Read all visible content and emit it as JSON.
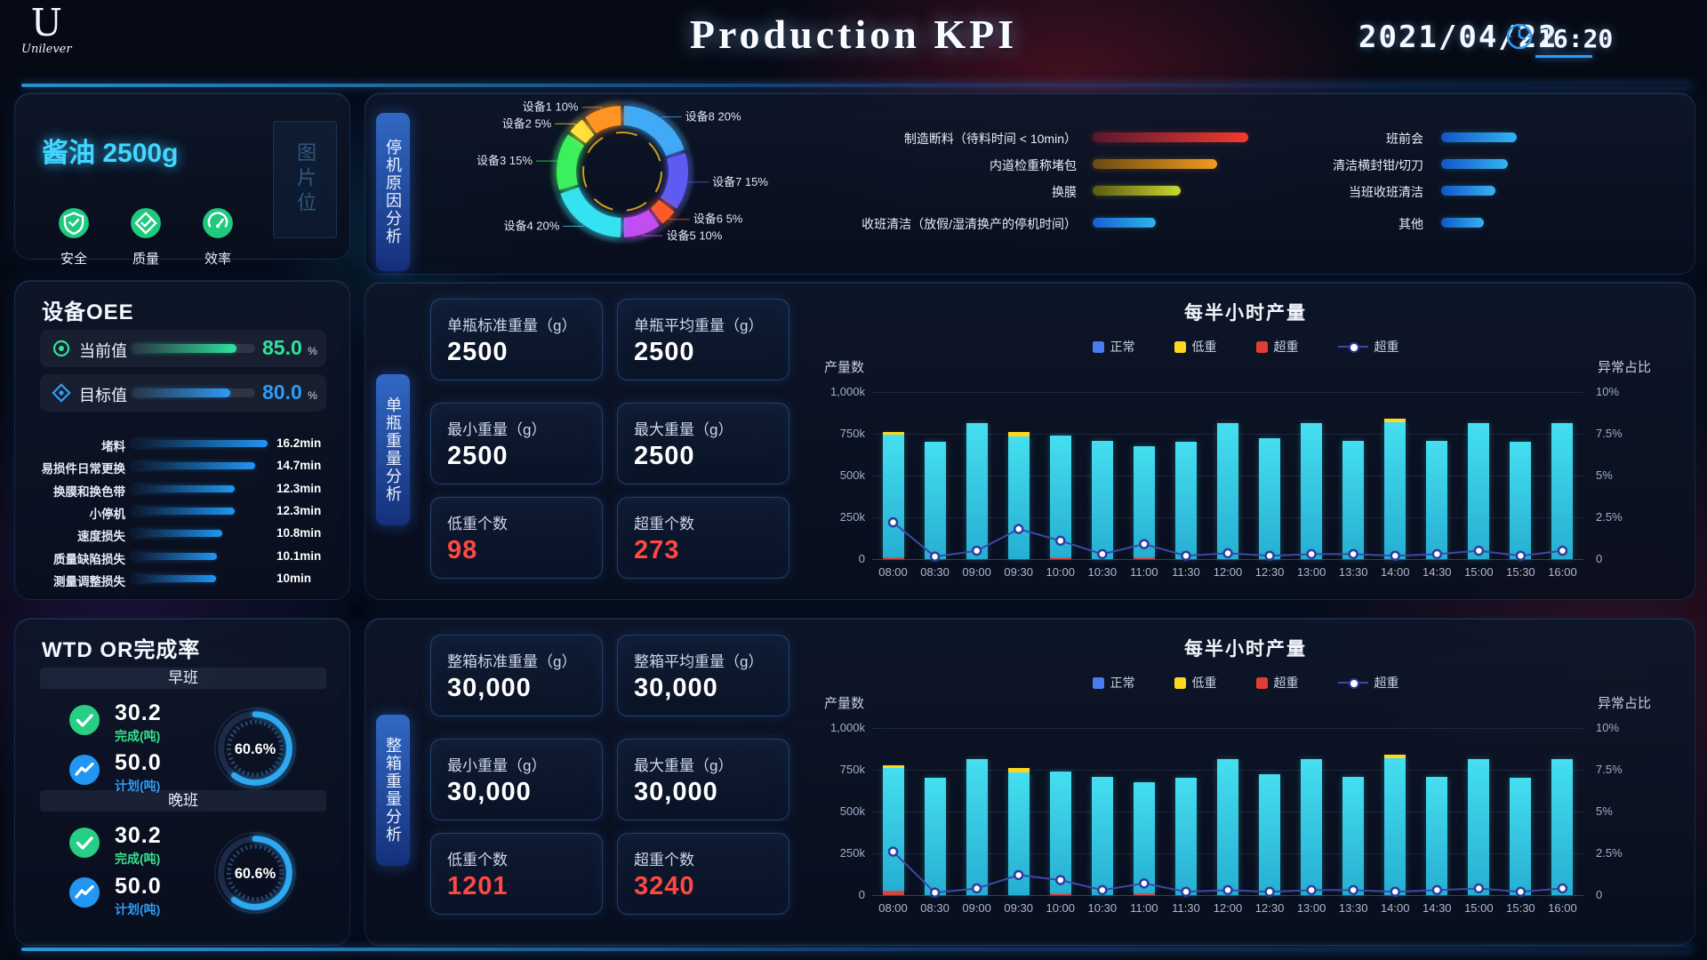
{
  "header": {
    "brand_letter": "U",
    "brand_script": "Unilever",
    "title": "Production KPI",
    "date": "2021/04/22",
    "time": "16:20"
  },
  "product": {
    "title": "酱油 2500g",
    "image_placeholder": "图片位",
    "badges": [
      {
        "icon": "shield-check-icon",
        "label": "安全"
      },
      {
        "icon": "diamond-check-icon",
        "label": "质量"
      },
      {
        "icon": "gauge-icon",
        "label": "效率"
      }
    ]
  },
  "oee": {
    "title": "设备OEE",
    "rows": [
      {
        "icon": "target-rings-icon",
        "label": "当前值",
        "value": "85.0",
        "unit": "%",
        "percent": 85,
        "color": "#2fe39b"
      },
      {
        "icon": "target-diamond-icon",
        "label": "目标值",
        "value": "80.0",
        "unit": "%",
        "percent": 80,
        "color": "#2e9bf5"
      }
    ],
    "losses": [
      {
        "label": "堵料",
        "value": "16.2min",
        "minutes": 16.2
      },
      {
        "label": "易损件日常更换",
        "value": "14.7min",
        "minutes": 14.7
      },
      {
        "label": "换膜和换色带",
        "value": "12.3min",
        "minutes": 12.3
      },
      {
        "label": "小停机",
        "value": "12.3min",
        "minutes": 12.3
      },
      {
        "label": "速度损失",
        "value": "10.8min",
        "minutes": 10.8
      },
      {
        "label": "质量缺陷损失",
        "value": "10.1min",
        "minutes": 10.1
      },
      {
        "label": "测量调整损失",
        "value": "10min",
        "minutes": 10
      }
    ]
  },
  "wtd": {
    "title": "WTD OR完成率",
    "shifts": [
      {
        "name": "早班",
        "done": "30.2",
        "done_label": "完成(吨)",
        "plan": "50.0",
        "plan_label": "计划(吨)",
        "gauge_text": "60.6%",
        "gauge_percent": 60.6
      },
      {
        "name": "晚班",
        "done": "30.2",
        "done_label": "完成(吨)",
        "plan": "50.0",
        "plan_label": "计划(吨)",
        "gauge_text": "60.6%",
        "gauge_percent": 60.6
      }
    ]
  },
  "downtime": {
    "tab": "停机原因分析"
  },
  "bottle": {
    "tab": "单瓶重量分析",
    "cards": [
      {
        "label": "单瓶标准重量（g）",
        "value": "2500"
      },
      {
        "label": "单瓶平均重量（g）",
        "value": "2500"
      },
      {
        "label": "最小重量（g）",
        "value": "2500"
      },
      {
        "label": "最大重量（g）",
        "value": "2500"
      },
      {
        "label": "低重个数",
        "value": "98",
        "alert": true
      },
      {
        "label": "超重个数",
        "value": "273",
        "alert": true
      }
    ]
  },
  "casebox": {
    "tab": "整箱重量分析",
    "cards": [
      {
        "label": "整箱标准重量（g）",
        "value": "30,000"
      },
      {
        "label": "整箱平均重量（g）",
        "value": "30,000"
      },
      {
        "label": "最小重量（g）",
        "value": "30,000"
      },
      {
        "label": "最大重量（g）",
        "value": "30,000"
      },
      {
        "label": "低重个数",
        "value": "1201",
        "alert": true
      },
      {
        "label": "超重个数",
        "value": "3240",
        "alert": true
      }
    ]
  },
  "chart_data": [
    {
      "id": "downtime-donut",
      "type": "pie",
      "donut": true,
      "label_format": "{name} {value}%",
      "segments": [
        {
          "name": "设备8",
          "value": 20,
          "color": "#41aaf7"
        },
        {
          "name": "设备7",
          "value": 15,
          "color": "#5d5bf2"
        },
        {
          "name": "设备6",
          "value": 5,
          "color": "#ff5a28"
        },
        {
          "name": "设备5",
          "value": 10,
          "color": "#c24df2"
        },
        {
          "name": "设备4",
          "value": 20,
          "color": "#35e2f2"
        },
        {
          "name": "设备3",
          "value": 15,
          "color": "#3bf05c"
        },
        {
          "name": "设备2",
          "value": 5,
          "color": "#ffe23a"
        },
        {
          "name": "设备1",
          "value": 10,
          "color": "#ff9324"
        }
      ]
    },
    {
      "id": "downtime-duration-bars",
      "type": "bar",
      "orientation": "horizontal",
      "note": "no numeric axis shown; lengths are relative pixel widths",
      "groups": [
        [
          {
            "label": "制造断料（待料时间 < 10min）",
            "length": 175,
            "color_from": "#5a1630",
            "color_to": "#f23c2e"
          },
          {
            "label": "内道检重称堵包",
            "length": 140,
            "color_from": "#6a4a15",
            "color_to": "#f09a1f"
          },
          {
            "label": "换膜",
            "length": 99,
            "color_from": "#5a5a12",
            "color_to": "#c8d832"
          },
          {
            "label": "收班清洁（放假/湿清换产的停机时间）",
            "length": 71,
            "color_from": "#1560d0",
            "color_to": "#2fb4ec"
          }
        ],
        [
          {
            "label": "班前会",
            "length": 85,
            "color_from": "#1255c8",
            "color_to": "#35b4f0"
          },
          {
            "label": "清洁横封钳/切刀",
            "length": 75,
            "color_from": "#1255c8",
            "color_to": "#35b4f0"
          },
          {
            "label": "当班收班清洁",
            "length": 61,
            "color_from": "#1255c8",
            "color_to": "#35b4f0"
          },
          {
            "label": "其他",
            "length": 48,
            "color_from": "#1255c8",
            "color_to": "#35b4f0"
          }
        ]
      ]
    },
    {
      "id": "bottle-halfhour",
      "type": "bar",
      "title": "每半小时产量",
      "ylabel": "产量数",
      "y2label": "异常占比",
      "ymax": 1000,
      "y2max": 10,
      "yticks": [
        "1,000k",
        "750k",
        "500k",
        "250k",
        "0"
      ],
      "y2ticks": [
        "10%",
        "7.5%",
        "5%",
        "2.5%",
        "0"
      ],
      "categories": [
        "08:00",
        "08:30",
        "09:00",
        "09:30",
        "10:00",
        "10:30",
        "11:00",
        "11:30",
        "12:00",
        "12:30",
        "13:00",
        "13:30",
        "14:00",
        "14:30",
        "15:00",
        "15:30",
        "16:00"
      ],
      "unit": "k",
      "series": [
        {
          "name": "正常",
          "color": "#4a7df5",
          "bar_color_top": "#45dff0",
          "bar_color_bottom": "#26aed2",
          "values": [
            735,
            700,
            812,
            735,
            728,
            705,
            665,
            700,
            812,
            725,
            812,
            705,
            820,
            710,
            812,
            700,
            812
          ]
        },
        {
          "name": "低重",
          "color": "#ffd81e",
          "values": [
            15,
            0,
            0,
            25,
            0,
            0,
            0,
            0,
            0,
            0,
            0,
            0,
            18,
            0,
            0,
            0,
            0
          ]
        },
        {
          "name": "超重",
          "color": "#e03c38",
          "values": [
            12,
            0,
            0,
            0,
            10,
            0,
            8,
            0,
            0,
            0,
            0,
            0,
            0,
            0,
            0,
            0,
            0
          ]
        }
      ],
      "line": {
        "name": "超重",
        "color": "#3c49a8",
        "marker": "circle",
        "axis": "right",
        "values": [
          2.2,
          0.15,
          0.5,
          1.8,
          1.1,
          0.3,
          0.9,
          0.2,
          0.35,
          0.2,
          0.3,
          0.3,
          0.2,
          0.3,
          0.5,
          0.2,
          0.5
        ]
      }
    },
    {
      "id": "case-halfhour",
      "type": "bar",
      "title": "每半小时产量",
      "ylabel": "产量数",
      "y2label": "异常占比",
      "ymax": 1000,
      "y2max": 10,
      "yticks": [
        "1,000k",
        "750k",
        "500k",
        "250k",
        "0"
      ],
      "y2ticks": [
        "10%",
        "7.5%",
        "5%",
        "2.5%",
        "0"
      ],
      "categories": [
        "08:00",
        "08:30",
        "09:00",
        "09:30",
        "10:00",
        "10:30",
        "11:00",
        "11:30",
        "12:00",
        "12:30",
        "13:00",
        "13:30",
        "14:00",
        "14:30",
        "15:00",
        "15:30",
        "16:00"
      ],
      "unit": "k",
      "series": [
        {
          "name": "正常",
          "color": "#4a7df5",
          "bar_color_top": "#45dff0",
          "bar_color_bottom": "#26aed2",
          "values": [
            735,
            700,
            812,
            735,
            728,
            705,
            665,
            700,
            812,
            725,
            812,
            705,
            820,
            710,
            812,
            700,
            812
          ]
        },
        {
          "name": "低重",
          "color": "#ffd81e",
          "values": [
            15,
            0,
            0,
            25,
            0,
            0,
            0,
            0,
            0,
            0,
            0,
            0,
            18,
            0,
            0,
            0,
            0
          ]
        },
        {
          "name": "超重",
          "color": "#e03c38",
          "values": [
            25,
            0,
            0,
            0,
            12,
            0,
            10,
            0,
            0,
            0,
            0,
            0,
            0,
            0,
            0,
            0,
            0
          ]
        }
      ],
      "line": {
        "name": "超重",
        "color": "#3c49a8",
        "marker": "circle",
        "axis": "right",
        "values": [
          2.6,
          0.15,
          0.4,
          1.2,
          0.9,
          0.3,
          0.7,
          0.2,
          0.3,
          0.2,
          0.3,
          0.3,
          0.2,
          0.3,
          0.4,
          0.2,
          0.4
        ]
      }
    }
  ]
}
